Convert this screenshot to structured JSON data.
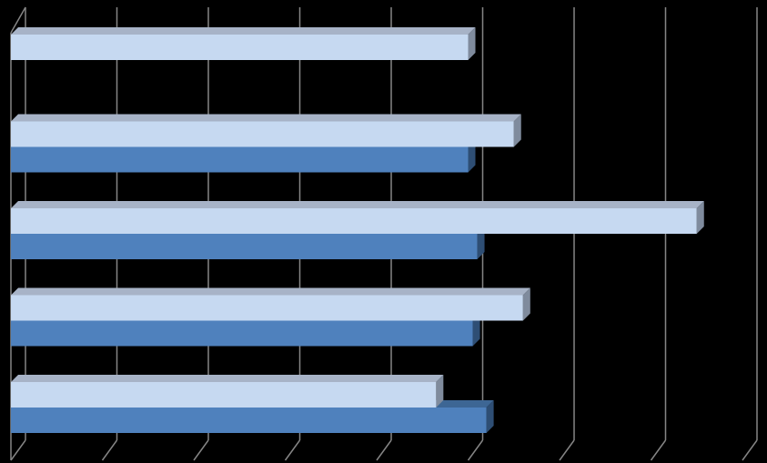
{
  "chart_data": {
    "type": "bar",
    "orientation": "horizontal",
    "style": "3d-clustered",
    "title": "",
    "xlabel": "",
    "ylabel": "",
    "xlim": [
      0,
      8
    ],
    "grid": true,
    "legend": "none",
    "categories": [
      "",
      "",
      "",
      "",
      ""
    ],
    "series": [
      {
        "color": "#4f81bd",
        "values": [
          null,
          5.0,
          5.1,
          5.05,
          5.2
        ]
      },
      {
        "color": "#c6d9f1",
        "values": [
          5.0,
          5.5,
          7.5,
          5.6,
          4.65
        ]
      }
    ]
  },
  "colors": {
    "background": "#000000",
    "gridline": "#858585",
    "bar_light_front": "#c6d9f1",
    "bar_light_top": "#a7b3c7",
    "bar_light_side": "#7f8b9d",
    "bar_dark_front": "#4f81bd",
    "bar_dark_top": "#3d6694",
    "bar_dark_side": "#2e4e74"
  }
}
